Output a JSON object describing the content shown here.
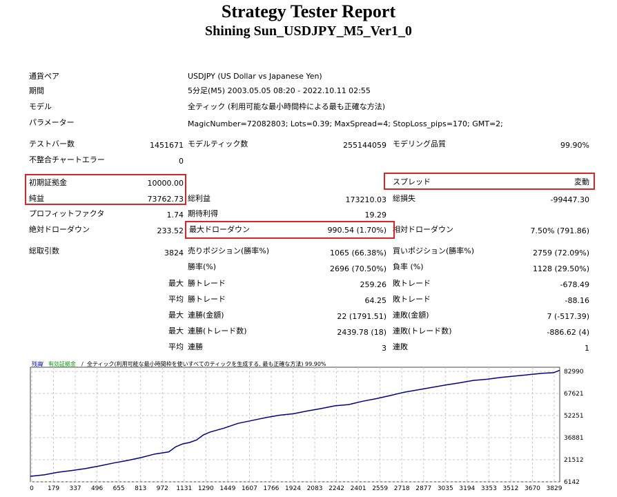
{
  "report": {
    "title": "Strategy Tester Report",
    "subtitle": "Shining Sun_USDJPY_M5_Ver1_0"
  },
  "info": {
    "symbol_label": "通貨ペア",
    "symbol_value": "USDJPY (US Dollar vs Japanese Yen)",
    "period_label": "期間",
    "period_value": "5分足(M5) 2003.05.05 08:20 - 2022.10.11 02:55",
    "model_label": "モデル",
    "model_value": "全ティック (利用可能な最小時間枠による最も正確な方法)",
    "params_label": "パラメーター",
    "params_value": "MagicNumber=72082803; Lots=0.39; MaxSpread=4; StopLoss_pips=170; GMT=2;"
  },
  "stats": {
    "bars_label": "テストバー数",
    "bars_value": "1451671",
    "ticks_label": "モデルティック数",
    "ticks_value": "255144059",
    "quality_label": "モデリング品質",
    "quality_value": "99.90%",
    "errors_label": "不整合チャートエラー",
    "errors_value": "0",
    "deposit_label": "初期証拠金",
    "deposit_value": "10000.00",
    "spread_label": "スプレッド",
    "spread_value": "変動",
    "net_label": "純益",
    "net_value": "73762.73",
    "gross_profit_label": "総利益",
    "gross_profit_value": "173210.03",
    "gross_loss_label": "総損失",
    "gross_loss_value": "-99447.30",
    "pf_label": "プロフィットファクタ",
    "pf_value": "1.74",
    "expected_label": "期待利得",
    "expected_value": "19.29",
    "abs_dd_label": "絶対ドローダウン",
    "abs_dd_value": "233.52",
    "max_dd_label": "最大ドローダウン",
    "max_dd_value": "990.54 (1.70%)",
    "rel_dd_label": "相対ドローダウン",
    "rel_dd_value": "7.50% (791.86)",
    "trades_label": "総取引数",
    "trades_value": "3824",
    "short_label": "売りポジション(勝率%)",
    "short_value": "1065 (66.38%)",
    "long_label": "買いポジション(勝率%)",
    "long_value": "2759 (72.09%)",
    "win_label": "勝率(%)",
    "win_value": "2696 (70.50%)",
    "loss_label": "負率 (%)",
    "loss_value": "1128 (29.50%)",
    "max_prefix": "最大",
    "avg_prefix": "平均",
    "largest_win_label": "勝トレード",
    "largest_win_value": "259.26",
    "largest_loss_label": "敗トレード",
    "largest_loss_value": "-678.49",
    "avg_win_label": "勝トレード",
    "avg_win_value": "64.25",
    "avg_loss_label": "敗トレード",
    "avg_loss_value": "-88.16",
    "max_cons_wins_label": "連勝(金額)",
    "max_cons_wins_value": "22 (1791.51)",
    "max_cons_losses_label": "連敗(金額)",
    "max_cons_losses_value": "7 (-517.39)",
    "max_cons_profit_label": "連勝(トレード数)",
    "max_cons_profit_value": "2439.78 (18)",
    "max_cons_loss_label": "連敗(トレード数)",
    "max_cons_loss_value": "-886.62 (4)",
    "avg_cons_wins_label": "連勝",
    "avg_cons_wins_value": "3",
    "avg_cons_losses_label": "連敗",
    "avg_cons_losses_value": "1"
  },
  "colors": {
    "highlight": "#dd2222",
    "balance_line": "#000088",
    "legend_balance": "#0000cc",
    "legend_equity": "#00a000",
    "grid": "#c8c8c8"
  },
  "chart_data": {
    "type": "line",
    "legend": {
      "balance": "残高",
      "sep1": " / ",
      "equity": "有効証拠金",
      "sep2": " / ",
      "model": "全ティック(利用可能な最小時間枠を使いすべてのティックを生成する, 最も正確な方法)",
      "sep3": " / ",
      "quality": "99.90%"
    },
    "x_ticks": [
      0,
      179,
      337,
      496,
      655,
      813,
      972,
      1131,
      1290,
      1449,
      1607,
      1766,
      1924,
      2083,
      2242,
      2401,
      2559,
      2718,
      2877,
      3035,
      3194,
      3353,
      3512,
      3670,
      3829
    ],
    "y_ticks": [
      6142,
      21512,
      36881,
      52251,
      67621,
      82990
    ],
    "xlim": [
      0,
      3824
    ],
    "ylim": [
      6142,
      82990
    ],
    "series": [
      {
        "x": [
          0,
          100,
          200,
          300,
          400,
          500,
          600,
          700,
          800,
          900,
          1000,
          1050,
          1100,
          1150,
          1200,
          1250,
          1300,
          1400,
          1500,
          1600,
          1700,
          1800,
          1900,
          2000,
          2100,
          2200,
          2300,
          2400,
          2500,
          2600,
          2700,
          2800,
          2900,
          3000,
          3100,
          3200,
          3300,
          3400,
          3500,
          3600,
          3700,
          3780,
          3824
        ],
        "values": [
          10000,
          11000,
          12800,
          14000,
          15400,
          17200,
          19200,
          21000,
          23000,
          25500,
          27000,
          30500,
          32500,
          33500,
          35200,
          38800,
          40800,
          43500,
          46800,
          48800,
          50800,
          52500,
          53500,
          55400,
          57100,
          59000,
          59900,
          62200,
          64000,
          66200,
          68500,
          70100,
          71800,
          73500,
          75000,
          76700,
          77500,
          78800,
          79700,
          80700,
          81700,
          82100,
          83762
        ]
      }
    ]
  }
}
